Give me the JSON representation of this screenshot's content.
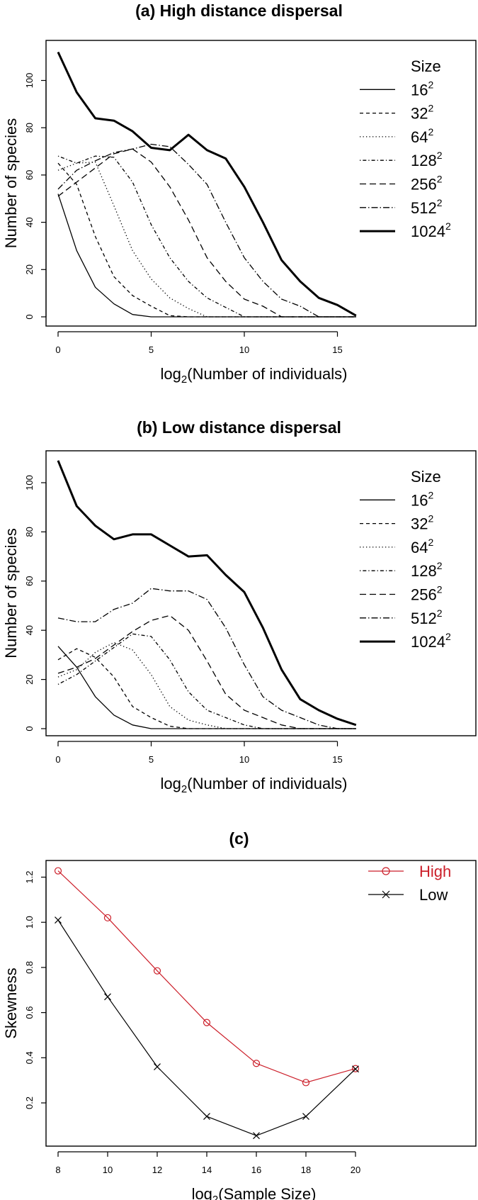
{
  "figure": {
    "panels": [
      {
        "id": "a",
        "title": "(a) High distance dispersal"
      },
      {
        "id": "b",
        "title": "(b) Low distance dispersal"
      },
      {
        "id": "c",
        "title": "(c)"
      }
    ]
  },
  "chart_data": [
    {
      "type": "line",
      "title": "(a) High distance dispersal",
      "xlabel": "log2(Number of individuals)",
      "ylabel": "Number of species",
      "xlim": [
        0,
        16
      ],
      "ylim": [
        0,
        115
      ],
      "xticks": [
        0,
        5,
        10,
        15
      ],
      "yticks": [
        0,
        20,
        40,
        60,
        80,
        100
      ],
      "grid": false,
      "legend": {
        "title": "Size",
        "position": "top-right"
      },
      "x": [
        0,
        1,
        2,
        3,
        4,
        5,
        6,
        7,
        8,
        9,
        10,
        11,
        12,
        13,
        14,
        15,
        16
      ],
      "series": [
        {
          "name": "16²",
          "base": "16",
          "style": "solid",
          "width": 1.3,
          "values": [
            52,
            28,
            12.5,
            5.5,
            1,
            0,
            0,
            0,
            0,
            0,
            0,
            0,
            0,
            0,
            0,
            0,
            0
          ]
        },
        {
          "name": "32²",
          "base": "32",
          "style": "dashed-short",
          "width": 1.3,
          "values": [
            65,
            56,
            34,
            17,
            9,
            4.5,
            0.5,
            0,
            0,
            0,
            0,
            0,
            0,
            0,
            0,
            0,
            0
          ]
        },
        {
          "name": "64²",
          "base": "64",
          "style": "dotted",
          "width": 1.3,
          "values": [
            62,
            65,
            65.5,
            47,
            28,
            16,
            8,
            3.5,
            0,
            0,
            0,
            0,
            0,
            0,
            0,
            0,
            0
          ]
        },
        {
          "name": "128²",
          "base": "128",
          "style": "dot-dash",
          "width": 1.3,
          "values": [
            68,
            65,
            68,
            67.5,
            57,
            39,
            25,
            15,
            8,
            4,
            0,
            0,
            0,
            0,
            0,
            0,
            0
          ]
        },
        {
          "name": "256²",
          "base": "256",
          "style": "dashed-long",
          "width": 1.3,
          "values": [
            51,
            57,
            63,
            69,
            71,
            65.5,
            55,
            41,
            25,
            15,
            7.5,
            4.5,
            0,
            0,
            0,
            0,
            0
          ]
        },
        {
          "name": "512²",
          "base": "512",
          "style": "long-dash-dot",
          "width": 1.3,
          "values": [
            54,
            62,
            66,
            69.5,
            71,
            73,
            72,
            64.5,
            56,
            40,
            25,
            15,
            7.5,
            4.5,
            0,
            0,
            0
          ]
        },
        {
          "name": "1024²",
          "base": "1024",
          "style": "solid",
          "width": 3,
          "values": [
            112,
            95,
            84,
            83,
            78.5,
            71.5,
            70.5,
            77,
            70.5,
            67,
            55,
            40,
            24,
            15,
            8,
            5,
            0.5
          ]
        }
      ]
    },
    {
      "type": "line",
      "title": "(b) Low distance dispersal",
      "xlabel": "log2(Number of individuals)",
      "ylabel": "Number of species",
      "xlim": [
        0,
        16
      ],
      "ylim": [
        0,
        112
      ],
      "xticks": [
        0,
        5,
        10,
        15
      ],
      "yticks": [
        0,
        20,
        40,
        60,
        80,
        100
      ],
      "grid": false,
      "legend": {
        "title": "Size",
        "position": "top-right"
      },
      "x": [
        0,
        1,
        2,
        3,
        4,
        5,
        6,
        7,
        8,
        9,
        10,
        11,
        12,
        13,
        14,
        15,
        16
      ],
      "series": [
        {
          "name": "16²",
          "base": "16",
          "style": "solid",
          "width": 1.3,
          "values": [
            33.5,
            25,
            13,
            5.5,
            1.5,
            0,
            0,
            0,
            0,
            0,
            0,
            0,
            0,
            0,
            0,
            0,
            0
          ]
        },
        {
          "name": "32²",
          "base": "32",
          "style": "dashed-short",
          "width": 1.3,
          "values": [
            28,
            32.5,
            29,
            21,
            9,
            4.5,
            1,
            0,
            0,
            0,
            0,
            0,
            0,
            0,
            0,
            0,
            0
          ]
        },
        {
          "name": "64²",
          "base": "64",
          "style": "dotted",
          "width": 1.3,
          "values": [
            21,
            24,
            31,
            35,
            32,
            22,
            9,
            3.5,
            1.5,
            0,
            0,
            0,
            0,
            0,
            0,
            0,
            0
          ]
        },
        {
          "name": "128²",
          "base": "128",
          "style": "dot-dash",
          "width": 1.3,
          "values": [
            18,
            22,
            27.5,
            33,
            38.5,
            37.5,
            28,
            15,
            7.5,
            4.5,
            1.5,
            0,
            0,
            0,
            0,
            0,
            0
          ]
        },
        {
          "name": "256²",
          "base": "256",
          "style": "dashed-long",
          "width": 1.3,
          "values": [
            22.5,
            25,
            28.5,
            34,
            39.5,
            44,
            46,
            40,
            27.5,
            14,
            7.5,
            4.5,
            1.5,
            0,
            0,
            0,
            0
          ]
        },
        {
          "name": "512²",
          "base": "512",
          "style": "long-dash-dot",
          "width": 1.3,
          "values": [
            45,
            43.5,
            43.5,
            48.5,
            51,
            57,
            56,
            56,
            52.5,
            41,
            26,
            13,
            7.5,
            4.5,
            1.5,
            0,
            0
          ]
        },
        {
          "name": "1024²",
          "base": "1024",
          "style": "solid",
          "width": 3,
          "values": [
            109,
            90.5,
            82.5,
            77,
            79,
            79,
            74.5,
            70,
            70.5,
            62.5,
            55.5,
            41,
            24,
            12,
            7.5,
            4,
            1.5
          ]
        }
      ]
    },
    {
      "type": "line",
      "title": "(c)",
      "xlabel": "log2(Sample Size)",
      "ylabel": "Skewness",
      "xlim": [
        8,
        20
      ],
      "ylim": [
        0.03,
        1.26
      ],
      "xticks": [
        8,
        10,
        12,
        14,
        16,
        18,
        20
      ],
      "yticks": [
        0.2,
        0.4,
        0.6,
        0.8,
        1.0,
        1.2
      ],
      "grid": false,
      "legend": {
        "position": "top-right"
      },
      "x": [
        8,
        10,
        12,
        14,
        16,
        18,
        20
      ],
      "series": [
        {
          "name": "High",
          "color": "#cc1f2a",
          "marker": "circle",
          "values": [
            1.228,
            1.02,
            0.785,
            0.556,
            0.375,
            0.29,
            0.352
          ]
        },
        {
          "name": "Low",
          "color": "#000000",
          "marker": "cross",
          "values": [
            1.01,
            0.67,
            0.36,
            0.14,
            0.055,
            0.14,
            0.35
          ]
        }
      ]
    }
  ]
}
